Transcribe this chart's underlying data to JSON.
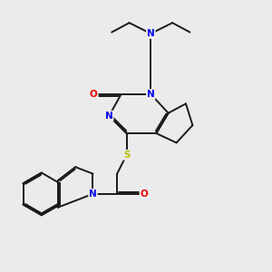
{
  "background_color": "#ebebeb",
  "bond_color": "#1a1a1a",
  "atom_colors": {
    "N": "#0000ee",
    "O": "#ee0000",
    "S": "#bbbb00"
  },
  "figsize": [
    3.0,
    3.0
  ],
  "dpi": 100,
  "lw": 1.4
}
